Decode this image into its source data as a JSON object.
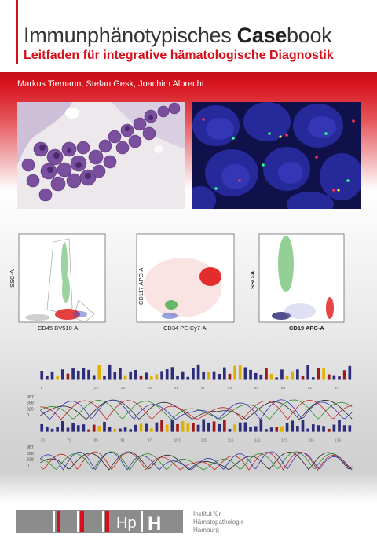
{
  "title_regular": "Immunphänotypisches ",
  "title_bold": "Case",
  "title_end": "book",
  "subtitle": "Leitfaden für integrative hämatologische Diagnostik",
  "authors": "Markus Tiemann, Stefan Gesk, Joachim Albrecht",
  "colors": {
    "accent": "#d4111b",
    "logo_grey": "#8c8c8c"
  },
  "flow_plots": [
    {
      "ylabel": "SSC-A",
      "xlabel": "CD45 BV510-A"
    },
    {
      "ylabel": "CD117 APC-A",
      "xlabel": "CD34 PE-Cy7-A"
    },
    {
      "ylabel": "SSC-A",
      "xlabel": "CD19 APC-A"
    }
  ],
  "sequence": {
    "top_positions": [
      "1",
      "7",
      "13",
      "19",
      "25",
      "31",
      "37",
      "43",
      "49",
      "55",
      "61",
      "67"
    ],
    "bottom_positions": [
      "73",
      "79",
      "85",
      "91",
      "97",
      "103",
      "109",
      "115",
      "121",
      "127",
      "133",
      "139"
    ],
    "y_ticks": [
      "987",
      "658",
      "329",
      "0"
    ]
  },
  "logo": {
    "text": "Hp",
    "letter": "H"
  },
  "institute": [
    "Institut für",
    "Hämatopathologie",
    "Hamburg"
  ]
}
